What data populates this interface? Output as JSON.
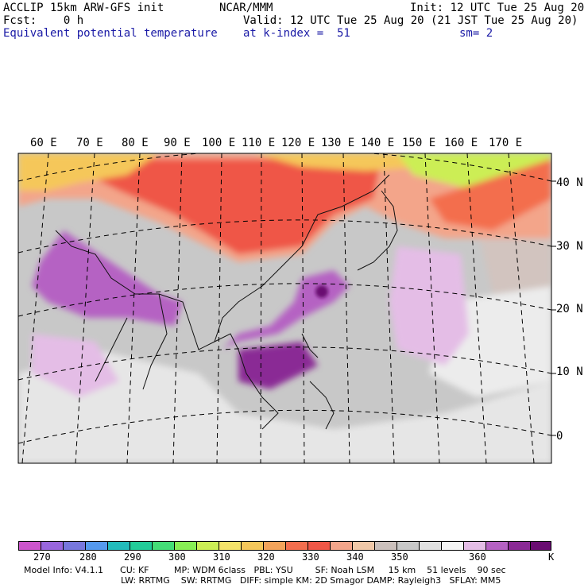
{
  "header": {
    "model": "ACCLIP 15km ARW-GFS init",
    "forecast": "Fcst:    0 h",
    "field": "Equivalent potential temperature",
    "org": "NCAR/MMM",
    "init": "Init: 12 UTC Tue 25 Aug 20",
    "valid": "Valid: 12 UTC Tue 25 Aug 20 (21 JST Tue 25 Aug 20)",
    "kindex": "at k-index =  51",
    "smoothing": "sm= 2"
  },
  "axes": {
    "longitudes": [
      "60 E",
      "70 E",
      "80 E",
      "90 E",
      "100 E",
      "110 E",
      "120 E",
      "130 E",
      "140 E",
      "150 E",
      "160 E",
      "170 E"
    ],
    "latitudes": [
      "40 N",
      "30 N",
      "20 N",
      "10 N",
      "0"
    ]
  },
  "colorbar": {
    "colors": [
      "#cc55cc",
      "#9966dd",
      "#7777dd",
      "#5599ee",
      "#22bbbb",
      "#22cc99",
      "#44dd77",
      "#88ee55",
      "#ccee55",
      "#f5e36a",
      "#f5c75a",
      "#f3a35a",
      "#f36e4e",
      "#ef5747",
      "#f3a58a",
      "#f0c8a8",
      "#cbc0bc",
      "#c8c8c8",
      "#e0e0e0",
      "#f5f5f5",
      "#e4bde6",
      "#b562c3",
      "#8a2a95",
      "#6a0d72"
    ],
    "labels": [
      "270",
      "280",
      "290",
      "300",
      "310",
      "320",
      "330",
      "340",
      "350",
      "360"
    ],
    "unit": "K"
  },
  "footer": {
    "line1": "Model Info: V4.1.1      CU: KF         MP: WDM 6class   PBL: YSU        SF: Noah LSM     15 km    51 levels    90 sec",
    "line2": "LW: RRTMG    SW: RRTMG   DIFF: simple KM: 2D Smagor DAMP: Rayleigh3   SFLAY: MM5"
  }
}
